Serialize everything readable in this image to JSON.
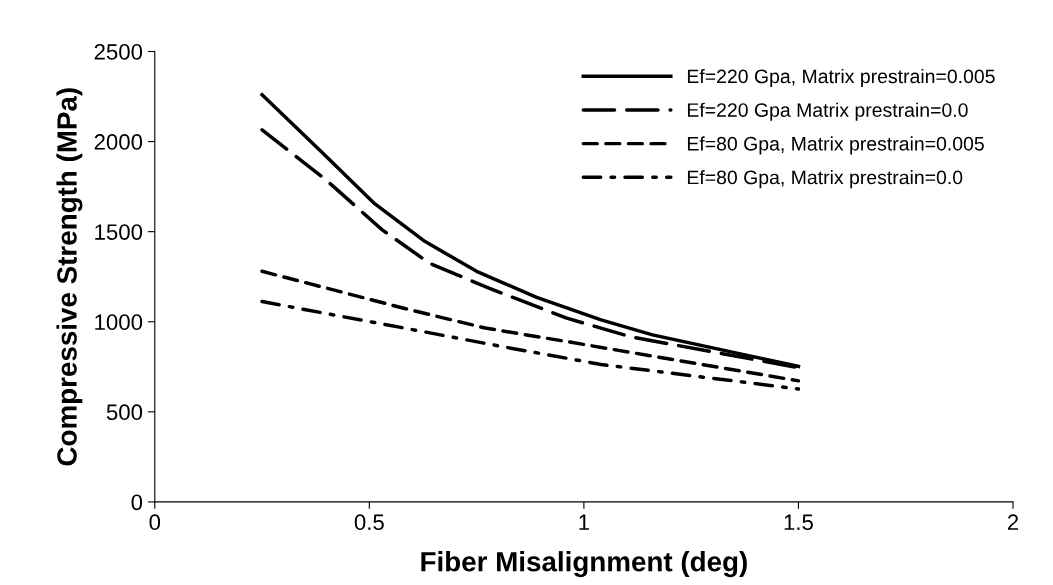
{
  "chart_data": {
    "type": "line",
    "xlabel": "Fiber Misalignment (deg)",
    "ylabel": "Compressive Strength (MPa)",
    "xlim": [
      0,
      2
    ],
    "xticks": [
      0,
      {
        "value": 0.5,
        "label": "0.5"
      },
      1,
      {
        "value": 1.5,
        "label": "1.5"
      },
      2
    ],
    "ylim": [
      0,
      2500
    ],
    "yticks": [
      0,
      500,
      1000,
      1500,
      2000,
      2500
    ],
    "grid": false,
    "legend": "top right",
    "marker": "none",
    "series": [
      {
        "name": "Ef=220 Gpa, Matrix prestrain=0.005",
        "color": "#000000",
        "line_style": "solid",
        "x": [
          0.25,
          0.39,
          0.51,
          0.63,
          0.75,
          0.89,
          1.04,
          1.16,
          1.5
        ],
        "values": [
          2260,
          1940,
          1660,
          1445,
          1280,
          1135,
          1010,
          927,
          752
        ]
      },
      {
        "name": "Ef=220 Gpa Matrix prestrain=0.0",
        "color": "#000000",
        "line_style": "long_dash",
        "x": [
          0.25,
          0.4,
          0.53,
          0.64,
          0.78,
          0.96,
          1.11,
          1.5
        ],
        "values": [
          2065,
          1785,
          1510,
          1325,
          1185,
          1020,
          916,
          745
        ]
      },
      {
        "name": "Ef=80 Gpa, Matrix prestrain=0.005",
        "color": "#000000",
        "line_style": "dashed",
        "x": [
          0.25,
          0.58,
          0.77,
          0.96,
          1.5
        ],
        "values": [
          1280,
          1075,
          965,
          890,
          672
        ]
      },
      {
        "name": "Ef=80 Gpa, Matrix prestrain=0.0",
        "color": "#000000",
        "line_style": "dashdot",
        "x": [
          0.25,
          0.57,
          0.81,
          1.04,
          1.5
        ],
        "values": [
          1112,
          970,
          862,
          763,
          627
        ]
      }
    ]
  }
}
